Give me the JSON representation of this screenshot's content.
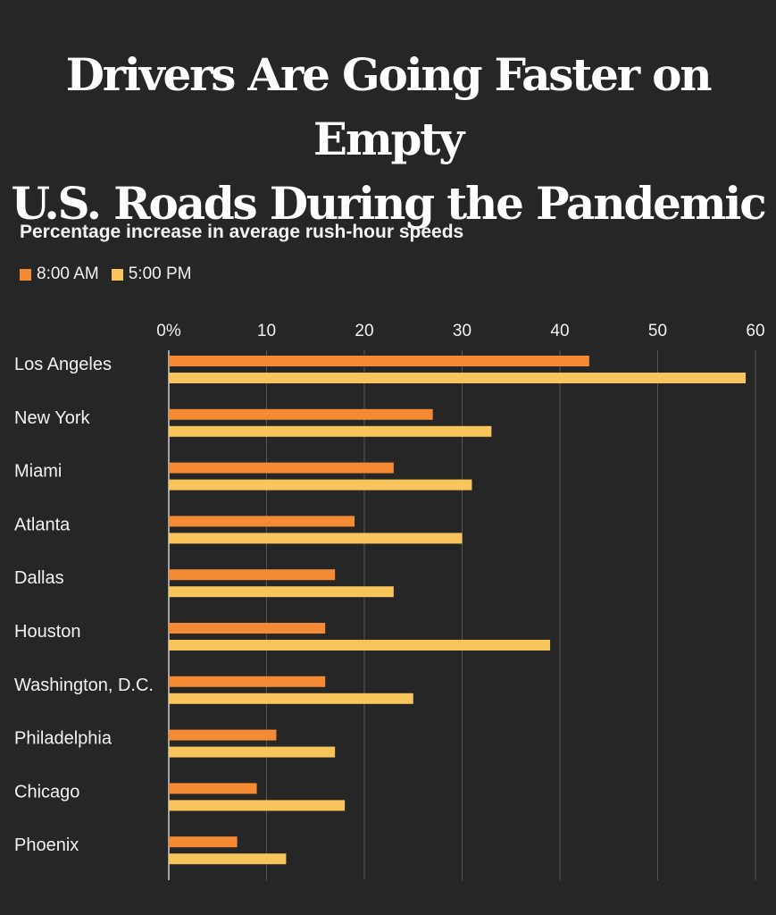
{
  "title_line1": "Drivers Are Going Faster on Empty",
  "title_line2": "U.S. Roads During the Pandemic",
  "subtitle": "Percentage increase in average rush-hour speeds",
  "colors": {
    "background": "#262626",
    "am": "#f58a34",
    "pm": "#f8c45c",
    "grid": "#555555",
    "text": "#f2f2f2"
  },
  "chart_data": {
    "type": "bar",
    "orientation": "horizontal",
    "categories": [
      "Los Angeles",
      "New York",
      "Miami",
      "Atlanta",
      "Dallas",
      "Houston",
      "Washington, D.C.",
      "Philadelphia",
      "Chicago",
      "Phoenix"
    ],
    "series": [
      {
        "name": "8:00 AM",
        "values": [
          43,
          27,
          23,
          19,
          17,
          16,
          16,
          11,
          9,
          7
        ]
      },
      {
        "name": "5:00 PM",
        "values": [
          59,
          33,
          31,
          30,
          23,
          39,
          25,
          17,
          18,
          12
        ]
      }
    ],
    "x_ticks": [
      "0%",
      "10",
      "20",
      "30",
      "40",
      "50",
      "60"
    ],
    "xlim": [
      0,
      60
    ],
    "grid": true,
    "legend_placement": "top-left"
  }
}
